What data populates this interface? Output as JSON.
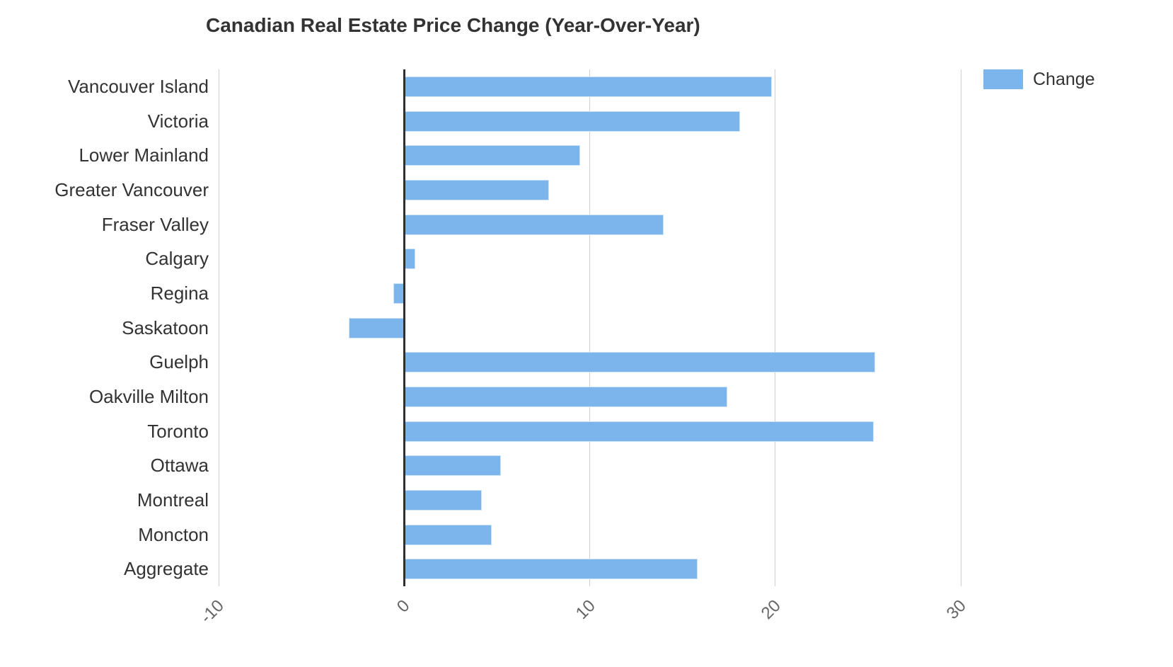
{
  "chart": {
    "title": "Canadian Real Estate Price Change (Year-Over-Year)"
  },
  "legend": {
    "items": [
      {
        "label": "Change",
        "color": "#7cb5ec"
      }
    ],
    "position": "top-right"
  },
  "colors": {
    "bar_fill": "#7cb5ec",
    "bar_border": "#cde3f6",
    "grid_line": "#cfcfcf",
    "zero_line": "#2f2f2f",
    "category_text": "#333333",
    "tick_text": "#666666",
    "title_text": "#333333",
    "background": "#ffffff"
  },
  "chart_data": {
    "type": "bar",
    "orientation": "horizontal",
    "title": "Canadian Real Estate Price Change (Year-Over-Year)",
    "categories": [
      "Vancouver Island",
      "Victoria",
      "Lower Mainland",
      "Greater Vancouver",
      "Fraser Valley",
      "Calgary",
      "Regina",
      "Saskatoon",
      "Guelph",
      "Oakville Milton",
      "Toronto",
      "Ottawa",
      "Montreal",
      "Moncton",
      "Aggregate"
    ],
    "series": [
      {
        "name": "Change",
        "values": [
          19.8,
          18.1,
          9.5,
          7.8,
          14.0,
          0.6,
          -0.6,
          -3.0,
          25.4,
          17.4,
          25.3,
          5.2,
          4.2,
          4.7,
          15.8
        ]
      }
    ],
    "value_axis": {
      "min": -10,
      "max": 30,
      "ticks": [
        -10,
        0,
        10,
        20,
        30
      ]
    },
    "grid": true,
    "legend_position": "top-right"
  }
}
